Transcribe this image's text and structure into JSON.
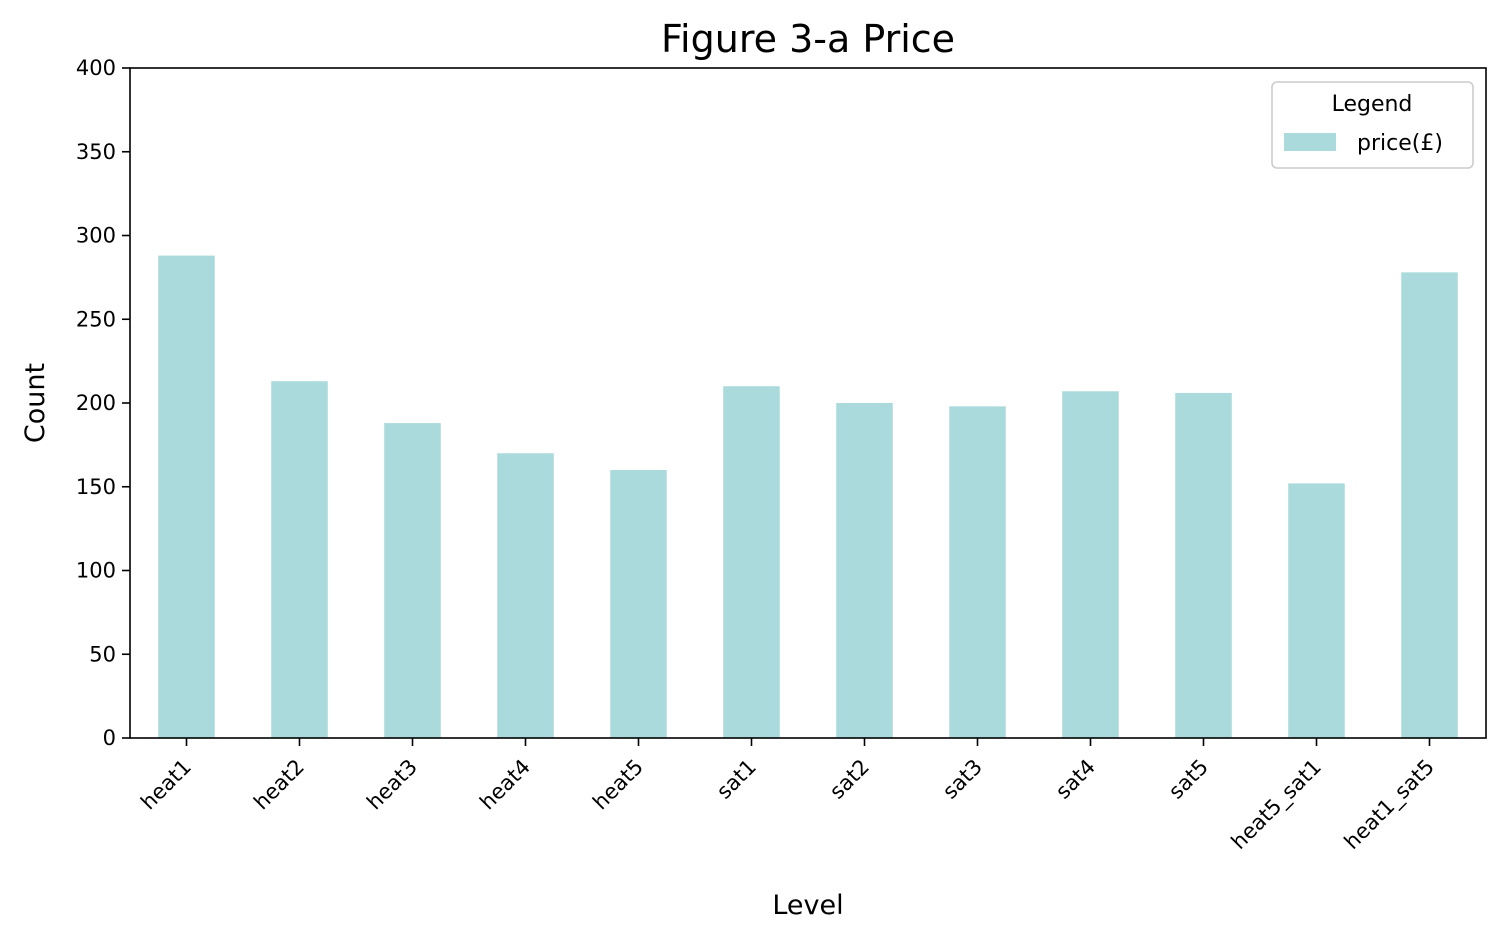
{
  "chart_data": {
    "type": "bar",
    "title": "Figure 3-a  Price",
    "xlabel": "Level",
    "ylabel": "Count",
    "categories": [
      "heat1",
      "heat2",
      "heat3",
      "heat4",
      "heat5",
      "sat1",
      "sat2",
      "sat3",
      "sat4",
      "sat5",
      "heat5_sat1",
      "heat1_sat5"
    ],
    "series": [
      {
        "name": "price(£)",
        "color": "#aadadb",
        "values": [
          288,
          213,
          188,
          170,
          160,
          210,
          200,
          198,
          207,
          206,
          152,
          278
        ]
      }
    ],
    "ylim": [
      0,
      400
    ],
    "yticks": [
      0,
      50,
      100,
      150,
      200,
      250,
      300,
      350,
      400
    ],
    "grid": false,
    "legend": {
      "title": "Legend",
      "position": "top-right"
    }
  }
}
